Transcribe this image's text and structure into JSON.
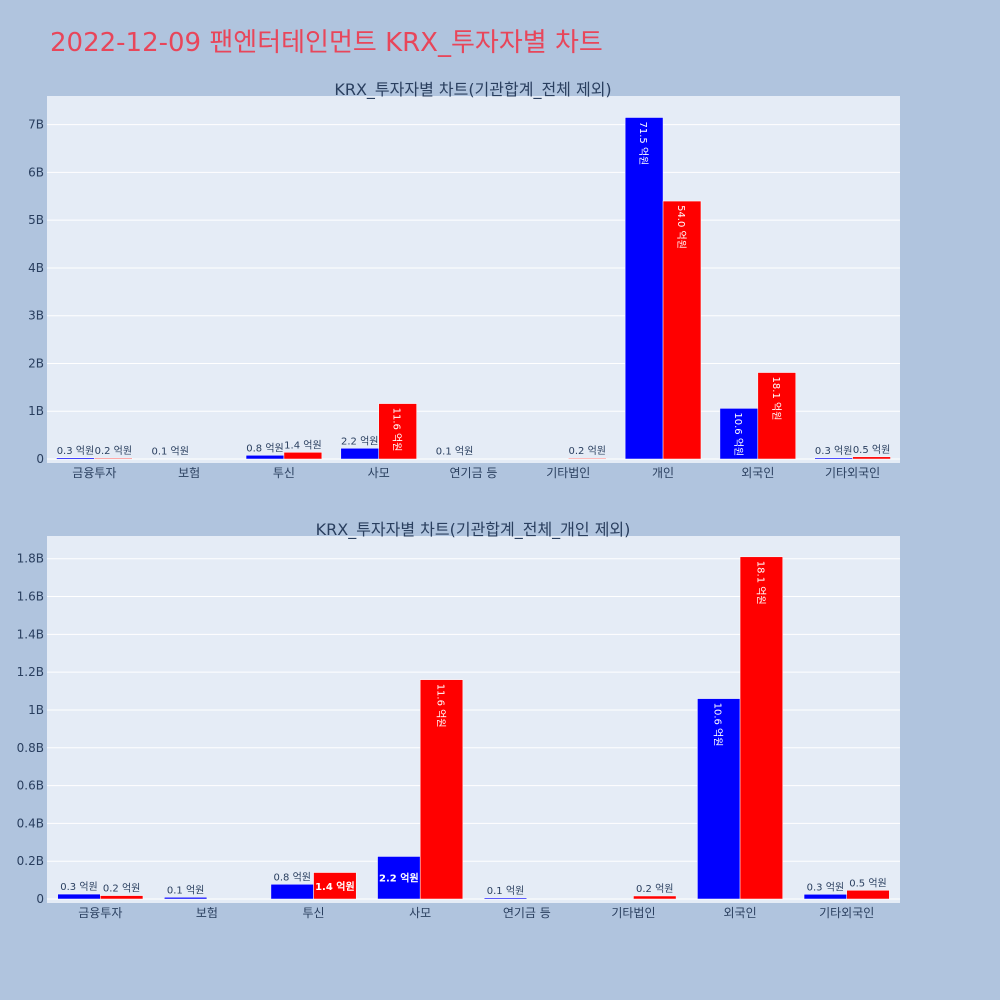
{
  "page": {
    "title": "2022-12-09 팬엔터테인먼트 KRX_투자자별 차트"
  },
  "colors": {
    "buy": "#0000ff",
    "sell": "#ff0000",
    "plot_bg": "#e5ecf6",
    "page_bg": "#b0c4de",
    "title": "#e8465a"
  },
  "chart_data": [
    {
      "type": "bar",
      "title": "KRX_투자자별 차트(기관합계_전체 제외)",
      "categories": [
        "금융투자",
        "보험",
        "투신",
        "사모",
        "연기금 등",
        "기타법인",
        "개인",
        "외국인",
        "기타외국인"
      ],
      "series": [
        {
          "values": [
            26000000,
            9000000,
            78000000,
            225000000,
            6000000,
            0,
            7150000000,
            1060000000,
            25000000
          ],
          "labels": [
            "0.3 억원",
            "0.1 억원",
            "0.8 억원",
            "2.2 억원",
            "0.1 억원",
            "",
            "71.5 억원",
            "10.6 억원",
            "0.3 억원"
          ]
        },
        {
          "values": [
            18000000,
            0,
            140000000,
            1160000000,
            0,
            16000000,
            5400000000,
            1810000000,
            46000000
          ],
          "labels": [
            "0.2 억원",
            "",
            "1.4 억원",
            "11.6 억원",
            "",
            "0.2 억원",
            "54.0 억원",
            "18.1 억원",
            "0.5 억원"
          ]
        }
      ],
      "ylim": [
        0,
        7600000000
      ],
      "yticks": [
        0,
        1000000000,
        2000000000,
        3000000000,
        4000000000,
        5000000000,
        6000000000,
        7000000000
      ],
      "ytick_labels": [
        "0",
        "1B",
        "2B",
        "3B",
        "4B",
        "5B",
        "6B",
        "7B"
      ],
      "grid": true,
      "legend": "none"
    },
    {
      "type": "bar",
      "title": "KRX_투자자별 차트(기관합계_전체_개인 제외)",
      "categories": [
        "금융투자",
        "보험",
        "투신",
        "사모",
        "연기금 등",
        "기타법인",
        "외국인",
        "기타외국인"
      ],
      "series": [
        {
          "values": [
            26000000,
            9000000,
            78000000,
            225000000,
            6000000,
            0,
            1060000000,
            25000000
          ],
          "labels": [
            "0.3 억원",
            "0.1 억원",
            "0.8 억원",
            "2.2 억원",
            "0.1 억원",
            "",
            "10.6 억원",
            "0.3 억원"
          ]
        },
        {
          "values": [
            18000000,
            0,
            140000000,
            1160000000,
            0,
            16000000,
            1810000000,
            46000000
          ],
          "labels": [
            "0.2 억원",
            "",
            "1.4 억원",
            "11.6 억원",
            "",
            "0.2 억원",
            "18.1 억원",
            "0.5 억원"
          ]
        }
      ],
      "ylim": [
        0,
        1920000000
      ],
      "yticks": [
        0,
        200000000,
        400000000,
        600000000,
        800000000,
        1000000000,
        1200000000,
        1400000000,
        1600000000,
        1800000000
      ],
      "ytick_labels": [
        "0",
        "0.2B",
        "0.4B",
        "0.6B",
        "0.8B",
        "1B",
        "1.2B",
        "1.4B",
        "1.6B",
        "1.8B"
      ],
      "grid": true,
      "legend": "none"
    }
  ]
}
